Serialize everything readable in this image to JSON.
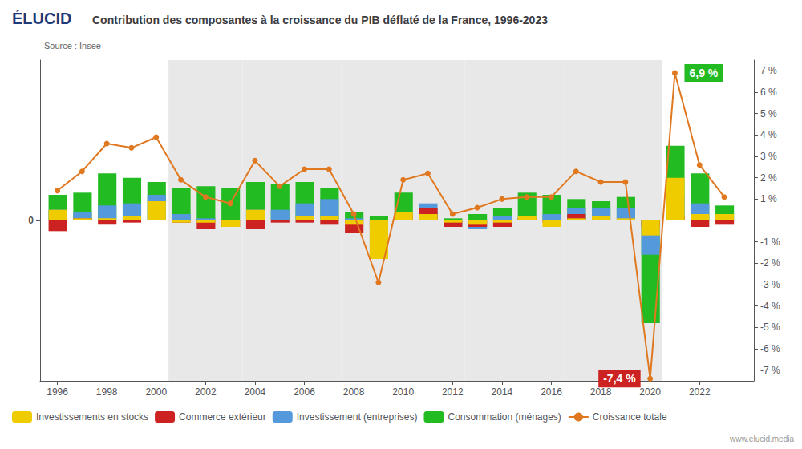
{
  "chart_data": {
    "type": "bar",
    "title": "Contribution des composantes à la croissance du PIB déflaté de la France, 1996-2023",
    "subtitle": "Source : Insee",
    "header": "ÉLUCID",
    "footer": "www.elucid.media",
    "x": [
      1996,
      1997,
      1998,
      1999,
      2000,
      2001,
      2002,
      2003,
      2004,
      2005,
      2006,
      2007,
      2008,
      2009,
      2010,
      2011,
      2012,
      2013,
      2014,
      2015,
      2016,
      2017,
      2018,
      2019,
      2020,
      2021,
      2022,
      2023
    ],
    "xlim": [
      1995.3,
      2024.2
    ],
    "xticks": [
      1996,
      1998,
      2000,
      2002,
      2004,
      2006,
      2008,
      2010,
      2012,
      2014,
      2016,
      2018,
      2020,
      2022
    ],
    "ylim": [
      -7.5,
      7.5
    ],
    "yticks": [
      0
    ],
    "y2lim": [
      -7.5,
      7.5
    ],
    "y2ticks": [
      {
        "value": -7,
        "label": "-7 %"
      },
      {
        "value": -6,
        "label": "-6 %"
      },
      {
        "value": -5,
        "label": "-5 %"
      },
      {
        "value": -4,
        "label": "-4 %"
      },
      {
        "value": -3,
        "label": "-3 %"
      },
      {
        "value": -2,
        "label": "-2 %"
      },
      {
        "value": -1,
        "label": "-1 %"
      },
      {
        "value": 1,
        "label": "1 %"
      },
      {
        "value": 2,
        "label": "2 %"
      },
      {
        "value": 3,
        "label": "3 %"
      },
      {
        "value": 4,
        "label": "4 %"
      },
      {
        "value": 5,
        "label": "5 %"
      },
      {
        "value": 6,
        "label": "6 %"
      },
      {
        "value": 7,
        "label": "7 %"
      }
    ],
    "stacked": true,
    "grid": false,
    "legend": "lower left",
    "series": [
      {
        "name": "Consommation (ménages)",
        "color": "#22bb22",
        "values": [
          1.2,
          1.3,
          2.2,
          2.0,
          1.8,
          1.5,
          1.6,
          1.5,
          1.8,
          1.7,
          1.8,
          1.5,
          0.4,
          0.2,
          1.3,
          0.4,
          0.1,
          0.3,
          0.6,
          1.3,
          1.2,
          1.0,
          0.9,
          1.1,
          -4.8,
          3.5,
          2.2,
          0.7
        ]
      },
      {
        "name": "Investissement (entreprises)",
        "color": "#5599dd",
        "values": [
          0.5,
          0.4,
          0.7,
          0.8,
          1.2,
          0.3,
          0.1,
          0.0,
          0.5,
          0.5,
          0.8,
          1.0,
          0.1,
          -1.5,
          0.0,
          0.8,
          -0.3,
          -0.4,
          0.2,
          0.1,
          0.3,
          0.6,
          0.6,
          0.6,
          -1.6,
          1.2,
          0.8,
          0.2
        ]
      },
      {
        "name": "Commerce extérieur",
        "color": "#cc2222",
        "values": [
          -0.5,
          0.1,
          -0.2,
          -0.1,
          0.0,
          -0.1,
          -0.4,
          -0.3,
          -0.4,
          -0.1,
          -0.1,
          -0.2,
          -0.6,
          -0.3,
          0.3,
          0.6,
          -0.3,
          -0.3,
          -0.3,
          0.1,
          -0.1,
          0.3,
          0.0,
          0.0,
          -0.3,
          0.2,
          -0.3,
          -0.2
        ]
      },
      {
        "name": "Investissements en stocks",
        "color": "#eecc00",
        "values": [
          0.5,
          0.1,
          0.1,
          0.2,
          0.9,
          -0.1,
          -0.1,
          -0.3,
          0.5,
          0.0,
          0.2,
          0.2,
          -0.2,
          -1.8,
          0.4,
          0.3,
          -0.1,
          -0.2,
          -0.1,
          0.2,
          -0.3,
          0.1,
          0.2,
          0.1,
          -0.7,
          2.0,
          0.3,
          0.3
        ]
      },
      {
        "name": "Croissance totale",
        "type": "line",
        "axis": "y2",
        "color": "#e07820",
        "marker": "circle",
        "values": [
          1.4,
          2.3,
          3.6,
          3.4,
          3.9,
          1.9,
          1.1,
          0.8,
          2.8,
          1.6,
          2.4,
          2.4,
          0.3,
          -2.9,
          1.9,
          2.2,
          0.3,
          0.6,
          1.0,
          1.1,
          1.1,
          2.3,
          1.8,
          1.8,
          -7.4,
          6.9,
          2.6,
          1.1
        ]
      }
    ],
    "shaded_periods": [
      [
        2001,
        2003
      ],
      [
        2004,
        2007
      ],
      [
        2008,
        2012
      ],
      [
        2013,
        2016
      ],
      [
        2017,
        2020
      ]
    ],
    "annotations": [
      {
        "text": "6,9 %",
        "x": 2021,
        "y": 6.9,
        "axis": "y2",
        "color": "#22bb22"
      },
      {
        "text": "-7,4 %",
        "x": 2020,
        "y": -7.4,
        "axis": "y2",
        "color": "#cc2222"
      }
    ]
  }
}
